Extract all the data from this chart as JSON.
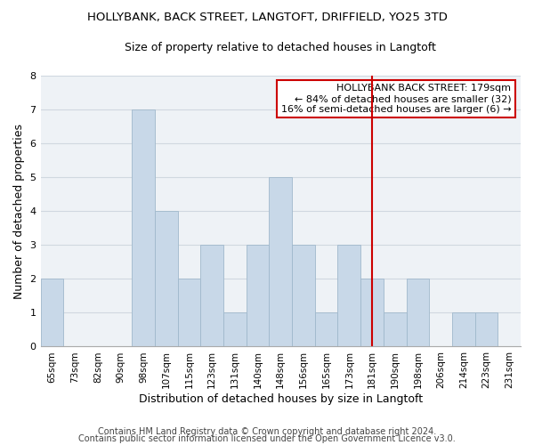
{
  "title": "HOLLYBANK, BACK STREET, LANGTOFT, DRIFFIELD, YO25 3TD",
  "subtitle": "Size of property relative to detached houses in Langtoft",
  "xlabel": "Distribution of detached houses by size in Langtoft",
  "ylabel": "Number of detached properties",
  "bin_labels": [
    "65sqm",
    "73sqm",
    "82sqm",
    "90sqm",
    "98sqm",
    "107sqm",
    "115sqm",
    "123sqm",
    "131sqm",
    "140sqm",
    "148sqm",
    "156sqm",
    "165sqm",
    "173sqm",
    "181sqm",
    "190sqm",
    "198sqm",
    "206sqm",
    "214sqm",
    "223sqm",
    "231sqm"
  ],
  "bar_heights": [
    2,
    0,
    0,
    0,
    7,
    4,
    2,
    3,
    1,
    3,
    5,
    3,
    1,
    3,
    2,
    1,
    2,
    0,
    1,
    1,
    0
  ],
  "bar_color": "#c8d8e8",
  "bar_edge_color": "#a0b8cc",
  "grid_color": "#d0d8e0",
  "background_color": "#eef2f6",
  "vline_x": 14,
  "vline_color": "#cc0000",
  "annotation_title": "HOLLYBANK BACK STREET: 179sqm",
  "annotation_line1": "← 84% of detached houses are smaller (32)",
  "annotation_line2": "16% of semi-detached houses are larger (6) →",
  "annotation_box_edge_color": "#cc0000",
  "annotation_box_face_color": "#ffffff",
  "footer1": "Contains HM Land Registry data © Crown copyright and database right 2024.",
  "footer2": "Contains public sector information licensed under the Open Government Licence v3.0.",
  "ylim": [
    0,
    8
  ],
  "yticks": [
    0,
    1,
    2,
    3,
    4,
    5,
    6,
    7,
    8
  ],
  "title_fontsize": 9.5,
  "subtitle_fontsize": 9,
  "axis_label_fontsize": 9,
  "tick_fontsize": 8,
  "annotation_fontsize": 8,
  "footer_fontsize": 7
}
